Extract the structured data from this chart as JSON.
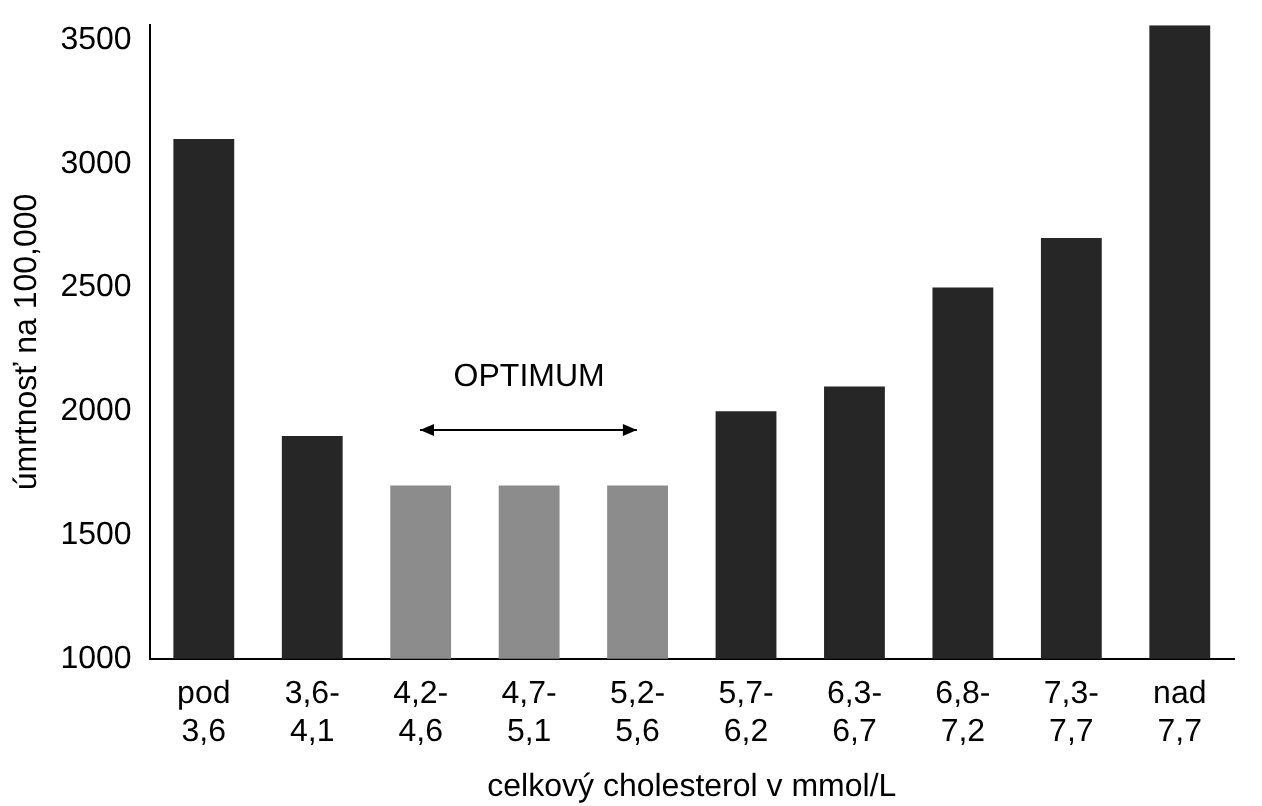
{
  "chart_data": {
    "type": "bar",
    "xlabel": "celkový cholesterol v mmol/L",
    "ylabel": "úmrtnosť na 100,000",
    "categories": [
      "pod 3,6",
      "3,6-4,1",
      "4,2-4,6",
      "4,7-5,1",
      "5,2-5,6",
      "5,7-6,2",
      "6,3-6,7",
      "6,8-7,2",
      "7,3-7,7",
      "nad 7,7"
    ],
    "values": [
      3100,
      1900,
      1700,
      1700,
      1700,
      2000,
      2100,
      2500,
      2700,
      3560
    ],
    "colors": [
      "#262626",
      "#262626",
      "#8c8c8c",
      "#8c8c8c",
      "#8c8c8c",
      "#262626",
      "#262626",
      "#262626",
      "#262626",
      "#262626"
    ],
    "ylim": [
      1000,
      3560
    ],
    "yticks": [
      1000,
      1500,
      2000,
      2500,
      3000,
      3500
    ],
    "grid": false,
    "legend": false,
    "annotations": [
      "OPTIMUM"
    ]
  }
}
